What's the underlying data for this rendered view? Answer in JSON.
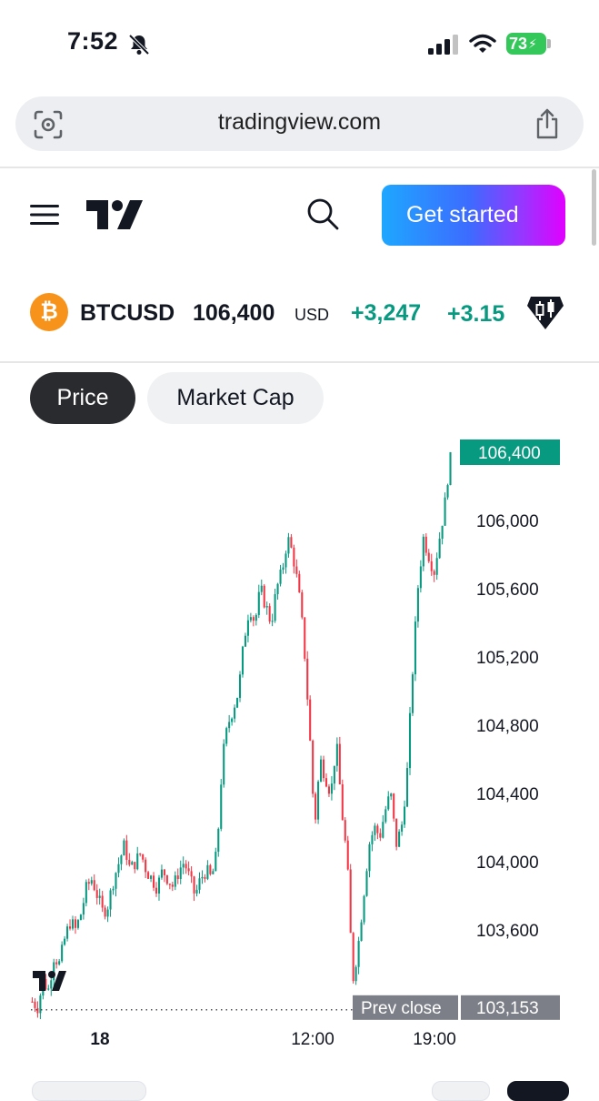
{
  "status_bar": {
    "time": "7:52",
    "battery": "73"
  },
  "browser": {
    "url": "tradingview.com"
  },
  "header": {
    "cta_label": "Get started"
  },
  "ticker": {
    "symbol": "BTCUSD",
    "price": "106,400",
    "currency": "USD",
    "change": "+3,247",
    "change_pct": "+3.15",
    "icon_glyph": "₿"
  },
  "tabs": [
    {
      "label": "Price",
      "active": true
    },
    {
      "label": "Market Cap",
      "active": false
    }
  ],
  "chart_data": {
    "type": "candlestick",
    "ylim": [
      103050,
      106550
    ],
    "y_ticks": [
      "106,000",
      "105,600",
      "105,200",
      "104,800",
      "104,400",
      "104,000",
      "103,600"
    ],
    "y_tick_values": [
      106000,
      105600,
      105200,
      104800,
      104400,
      104000,
      103600
    ],
    "x_ticks": [
      "18",
      "12:00",
      "19:00"
    ],
    "last_price_label": "106,400",
    "last_price": 106400,
    "prev_close_label": "Prev close",
    "prev_close_value": "103,153",
    "prev_close": 103153,
    "up_color": "#089981",
    "down_color": "#f23645",
    "path": [
      103180,
      103150,
      103300,
      103250,
      103450,
      103400,
      103550,
      103650,
      103600,
      103700,
      103850,
      103900,
      103800,
      103700,
      103750,
      103900,
      104000,
      104100,
      103950,
      104000,
      104050,
      103950,
      103900,
      103850,
      103950,
      103900,
      103850,
      103950,
      104000,
      103900,
      103800,
      103900,
      103950,
      103900,
      104050,
      104600,
      104800,
      104900,
      105000,
      105300,
      105500,
      105400,
      105600,
      105500,
      105400,
      105600,
      105700,
      105900,
      105800,
      105600,
      105300,
      104800,
      104200,
      104600,
      104500,
      104400,
      104700,
      104300,
      104000,
      103300,
      103500,
      103800,
      104100,
      104200,
      104150,
      104300,
      104400,
      104100,
      104200,
      104500,
      105100,
      105600,
      105900,
      105800,
      105700,
      105900,
      106100,
      106400
    ]
  },
  "colors": {
    "accent": "#089981",
    "down": "#f23645",
    "tab_active": "#2a2b2e"
  }
}
